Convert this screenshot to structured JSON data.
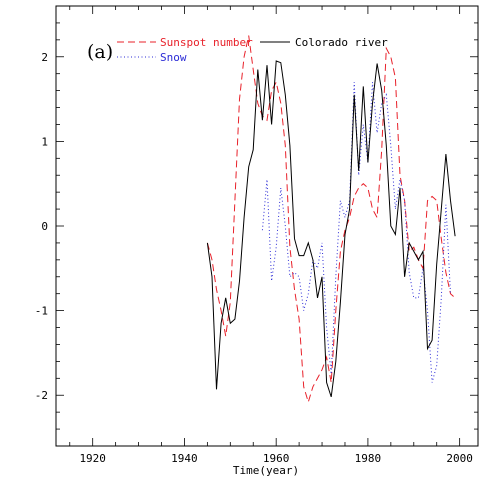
{
  "chart_data": {
    "type": "line",
    "panel_label": "(a)",
    "xlabel": "Time(year)",
    "ylabel": "",
    "xlim": [
      1912,
      2004
    ],
    "ylim": [
      -2.6,
      2.6
    ],
    "x_ticks": [
      1920,
      1940,
      1960,
      1980,
      2000
    ],
    "y_ticks": [
      -2,
      -1,
      0,
      1,
      2
    ],
    "grid": false,
    "legend_position": "top-left",
    "series": [
      {
        "name": "Sunspot number",
        "color": "#e8212a",
        "style": "dashed",
        "x": [
          1945,
          1946,
          1947,
          1948,
          1949,
          1950,
          1951,
          1952,
          1953,
          1954,
          1955,
          1956,
          1957,
          1958,
          1959,
          1960,
          1961,
          1962,
          1963,
          1964,
          1965,
          1966,
          1967,
          1968,
          1969,
          1970,
          1971,
          1972,
          1973,
          1974,
          1975,
          1976,
          1977,
          1978,
          1979,
          1980,
          1981,
          1982,
          1983,
          1984,
          1985,
          1986,
          1987,
          1988,
          1989,
          1990,
          1991,
          1992,
          1993,
          1994,
          1995,
          1996,
          1997,
          1998,
          1999
        ],
        "y": [
          -0.2,
          -0.4,
          -0.75,
          -1.0,
          -1.3,
          -0.9,
          0.3,
          1.5,
          2.0,
          2.25,
          1.85,
          1.45,
          1.3,
          1.25,
          1.6,
          1.7,
          1.45,
          0.95,
          -0.25,
          -0.75,
          -1.1,
          -1.9,
          -2.08,
          -1.9,
          -1.8,
          -1.7,
          -1.55,
          -1.85,
          -1.0,
          -0.3,
          -0.05,
          0.1,
          0.35,
          0.45,
          0.5,
          0.45,
          0.2,
          0.1,
          0.9,
          2.1,
          2.0,
          1.75,
          0.6,
          0.3,
          -0.3,
          -0.25,
          -0.4,
          -0.5,
          0.3,
          0.35,
          0.3,
          -0.15,
          -0.55,
          -0.8,
          -0.85
        ]
      },
      {
        "name": "Snow",
        "color": "#2b2bd6",
        "style": "dotted",
        "x": [
          1957,
          1958,
          1959,
          1960,
          1961,
          1962,
          1963,
          1964,
          1965,
          1966,
          1967,
          1968,
          1969,
          1970,
          1971,
          1972,
          1973,
          1974,
          1975,
          1976,
          1977,
          1978,
          1979,
          1980,
          1981,
          1982,
          1983,
          1984,
          1985,
          1986,
          1987,
          1988,
          1989,
          1990,
          1991,
          1992,
          1993,
          1994,
          1995,
          1996,
          1997,
          1998
        ],
        "y": [
          -0.05,
          0.55,
          -0.65,
          -0.25,
          0.45,
          0.0,
          -0.6,
          -0.55,
          -0.6,
          -1.0,
          -0.8,
          -0.4,
          -0.5,
          -0.2,
          -1.2,
          -1.75,
          -0.6,
          0.3,
          0.1,
          0.3,
          1.7,
          0.6,
          1.2,
          0.75,
          1.7,
          1.1,
          1.45,
          1.55,
          0.95,
          0.2,
          0.55,
          0.3,
          -0.55,
          -0.85,
          -0.85,
          -0.5,
          -1.0,
          -1.85,
          -1.65,
          -0.85,
          0.25,
          -0.8
        ]
      },
      {
        "name": "Colorado river",
        "color": "#000000",
        "style": "solid",
        "x": [
          1945,
          1946,
          1947,
          1948,
          1949,
          1950,
          1951,
          1952,
          1953,
          1954,
          1955,
          1956,
          1957,
          1958,
          1959,
          1960,
          1961,
          1962,
          1963,
          1964,
          1965,
          1966,
          1967,
          1968,
          1969,
          1970,
          1971,
          1972,
          1973,
          1974,
          1975,
          1976,
          1977,
          1978,
          1979,
          1980,
          1981,
          1982,
          1983,
          1984,
          1985,
          1986,
          1987,
          1988,
          1989,
          1990,
          1991,
          1992,
          1993,
          1994,
          1995,
          1996,
          1997,
          1998,
          1999
        ],
        "y": [
          -0.2,
          -0.6,
          -1.93,
          -1.15,
          -0.85,
          -1.15,
          -1.1,
          -0.65,
          0.1,
          0.7,
          0.9,
          1.85,
          1.25,
          1.9,
          1.2,
          1.95,
          1.93,
          1.55,
          0.95,
          -0.15,
          -0.35,
          -0.35,
          -0.2,
          -0.4,
          -0.85,
          -0.6,
          -1.85,
          -2.02,
          -1.6,
          -0.9,
          -0.1,
          0.2,
          1.55,
          0.65,
          1.65,
          0.75,
          1.45,
          1.92,
          1.6,
          0.95,
          0.0,
          -0.1,
          0.45,
          -0.6,
          -0.2,
          -0.3,
          -0.4,
          -0.3,
          -1.45,
          -1.35,
          -0.45,
          0.2,
          0.85,
          0.3,
          -0.12
        ]
      }
    ]
  }
}
